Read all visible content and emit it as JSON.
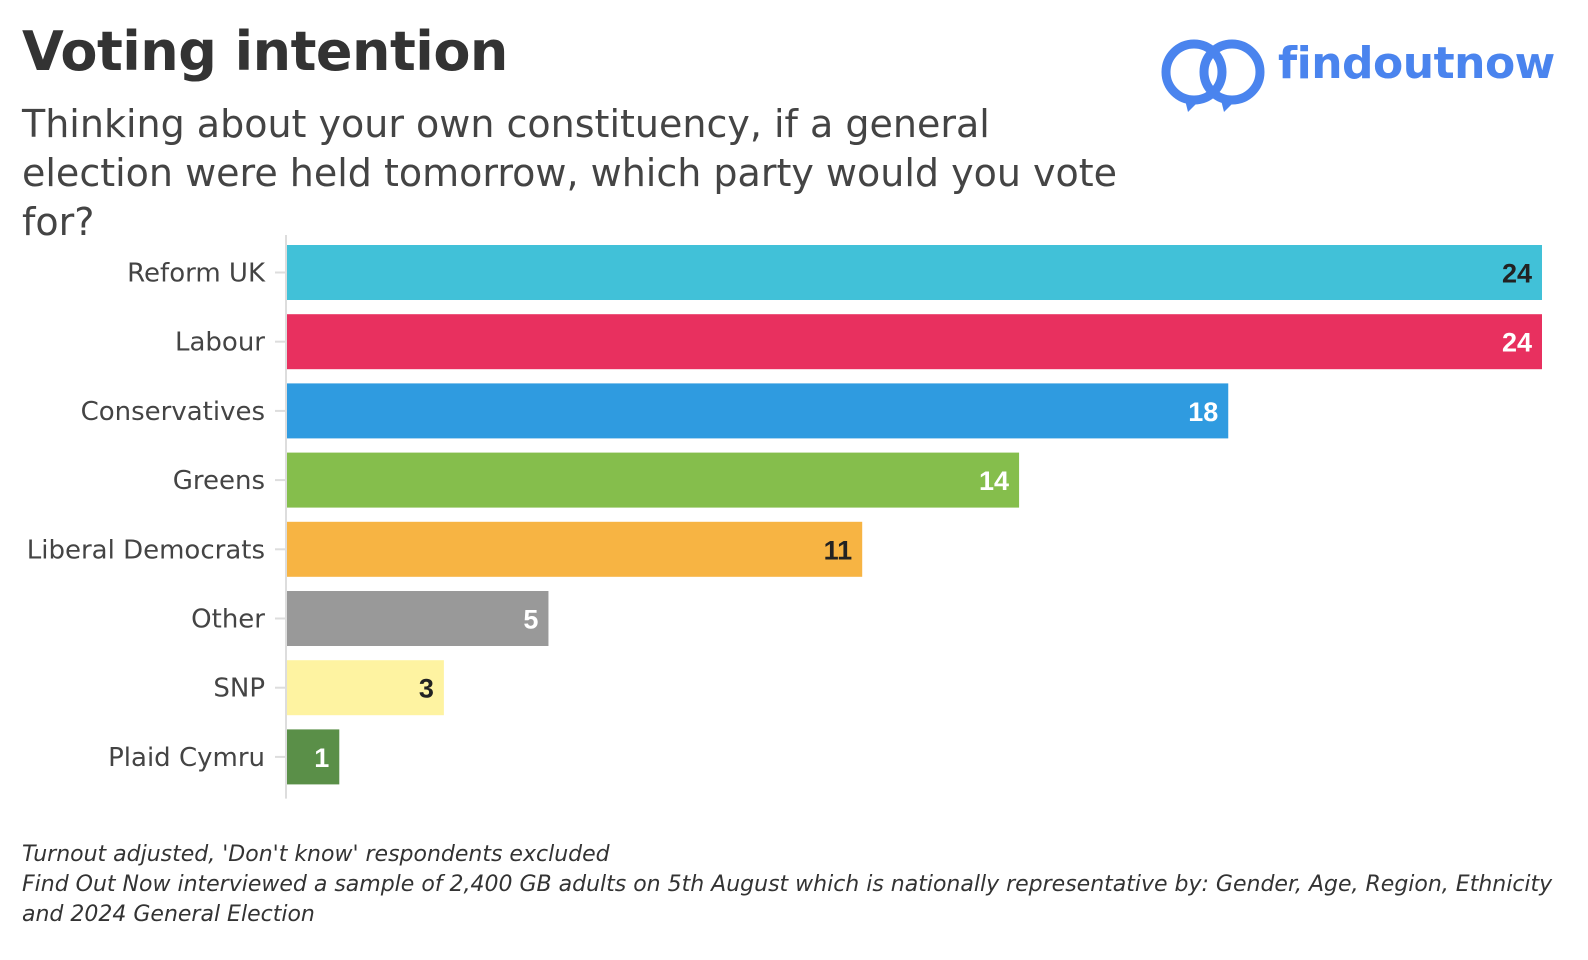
{
  "header": {
    "title": "Voting intention",
    "subtitle": "Thinking about your own constituency, if a general election were held tomorrow, which party would you vote for?"
  },
  "logo": {
    "text": "findoutnow",
    "icon": "interlocking-rings-icon",
    "color": "#4a84ee"
  },
  "chart_data": {
    "type": "bar",
    "orientation": "horizontal",
    "categories": [
      "Reform UK",
      "Labour",
      "Conservatives",
      "Greens",
      "Liberal Democrats",
      "Other",
      "SNP",
      "Plaid Cymru"
    ],
    "values": [
      24,
      24,
      18,
      14,
      11,
      5,
      3,
      1
    ],
    "colors": [
      "#41c1d8",
      "#e8305f",
      "#2f9be0",
      "#85be4c",
      "#f7b443",
      "#999999",
      "#fef3a1",
      "#5a8f48"
    ],
    "label_colors": [
      "#222222",
      "#ffffff",
      "#ffffff",
      "#ffffff",
      "#222222",
      "#ffffff",
      "#222222",
      "#ffffff"
    ],
    "xlim": [
      0,
      24
    ],
    "grid": false,
    "legend": "none",
    "data_labels": true
  },
  "footer": {
    "note": "Turnout adjusted, 'Don't know' respondents excluded",
    "methodology": "Find Out Now interviewed a sample of 2,400 GB adults on 5th August which is nationally representative by: Gender, Age, Region, Ethnicity and 2024 General Election"
  }
}
